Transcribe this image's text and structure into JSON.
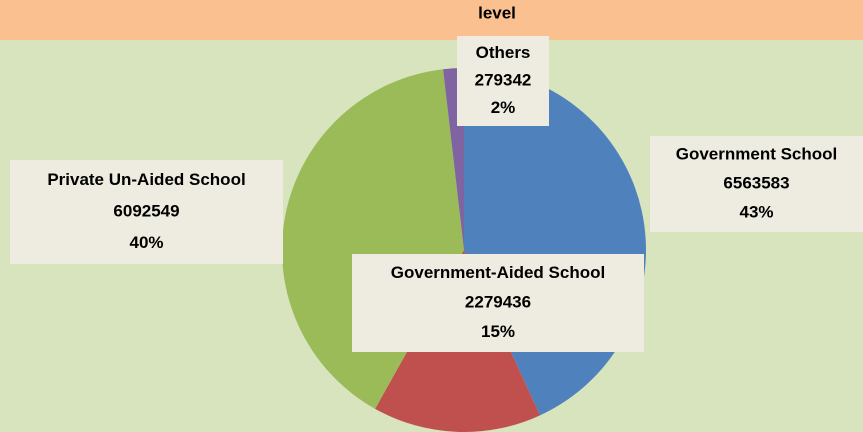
{
  "chart_data": {
    "type": "pie",
    "title": "level",
    "categories": [
      "Government School",
      "Government-Aided School",
      "Private Un-Aided School",
      "Others"
    ],
    "values": [
      6563583,
      2279436,
      6092549,
      279342
    ],
    "percent_labels": [
      "43%",
      "15%",
      "40%",
      "2%"
    ],
    "colors": [
      "#4f81bd",
      "#c0504d",
      "#9bbb59",
      "#8064a2"
    ]
  }
}
